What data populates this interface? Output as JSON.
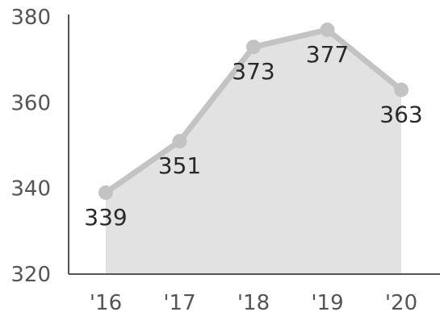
{
  "chart_data": {
    "type": "area",
    "categories": [
      "'16",
      "'17",
      "'18",
      "'19",
      "'20"
    ],
    "values": [
      339,
      351,
      373,
      377,
      363
    ],
    "data_labels": [
      "339",
      "351",
      "373",
      "377",
      "363"
    ],
    "yticks": [
      320,
      340,
      360,
      380
    ],
    "ytick_labels": [
      "320",
      "340",
      "360",
      "380"
    ],
    "ylim": [
      320,
      380
    ],
    "title": "",
    "xlabel": "",
    "ylabel": "",
    "grid": false,
    "legend": "none",
    "colors": {
      "area": "#e2e2e2",
      "line": "#c3c3c3",
      "point": "#c3c3c3",
      "axis": "#555555",
      "tick_text": "#555555",
      "label_text": "#2a2a2a"
    }
  }
}
